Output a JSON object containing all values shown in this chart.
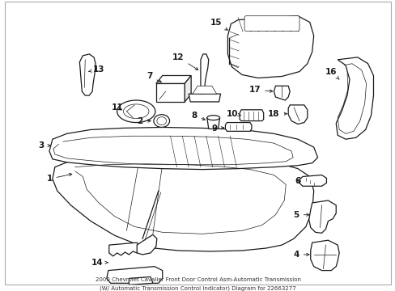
{
  "title_line1": "2000 Chevrolet Cavalier Front Door Control Asm-Automatic Transmission",
  "title_line2": "(W/ Automatic Transmission Control Indicator) Diagram for 22663277",
  "background_color": "#ffffff",
  "line_color": "#1a1a1a",
  "fig_width": 4.89,
  "fig_height": 3.6,
  "dpi": 100,
  "border_color": "#aaaaaa",
  "label_fontsize": 7.5,
  "title_fontsize": 5.0
}
